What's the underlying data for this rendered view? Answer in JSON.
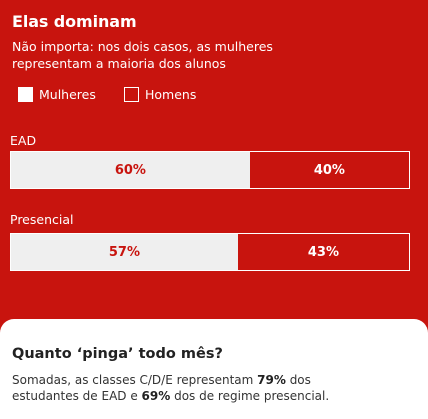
{
  "chart_data": {
    "type": "bar",
    "stacked": true,
    "orientation": "horizontal",
    "title": "Elas dominam",
    "subtitle": "Não importa: nos dois casos, as mulheres representam a maioria dos alunos",
    "categories": [
      "EAD",
      "Presencial"
    ],
    "series": [
      {
        "name": "Mulheres",
        "values": [
          60,
          57
        ],
        "labels": [
          "60%",
          "57%"
        ],
        "color": "#efefef"
      },
      {
        "name": "Homens",
        "values": [
          40,
          43
        ],
        "labels": [
          "40%",
          "43%"
        ],
        "color": "#c8140e"
      }
    ],
    "unit": "%",
    "legend": "top-left",
    "grid": false
  },
  "colors": {
    "background": "#c8140e",
    "women": "#efefef",
    "men": "#c8140e",
    "text_light": "#ffffff"
  },
  "info": {
    "title": "Quanto ‘pinga’ todo mês?",
    "text_1": "Somadas, as classes C/D/E representam ",
    "highlight_1": "79%",
    "text_2": " dos estudantes de EAD e ",
    "highlight_2": "69%",
    "text_3": " dos de regime presencial."
  }
}
